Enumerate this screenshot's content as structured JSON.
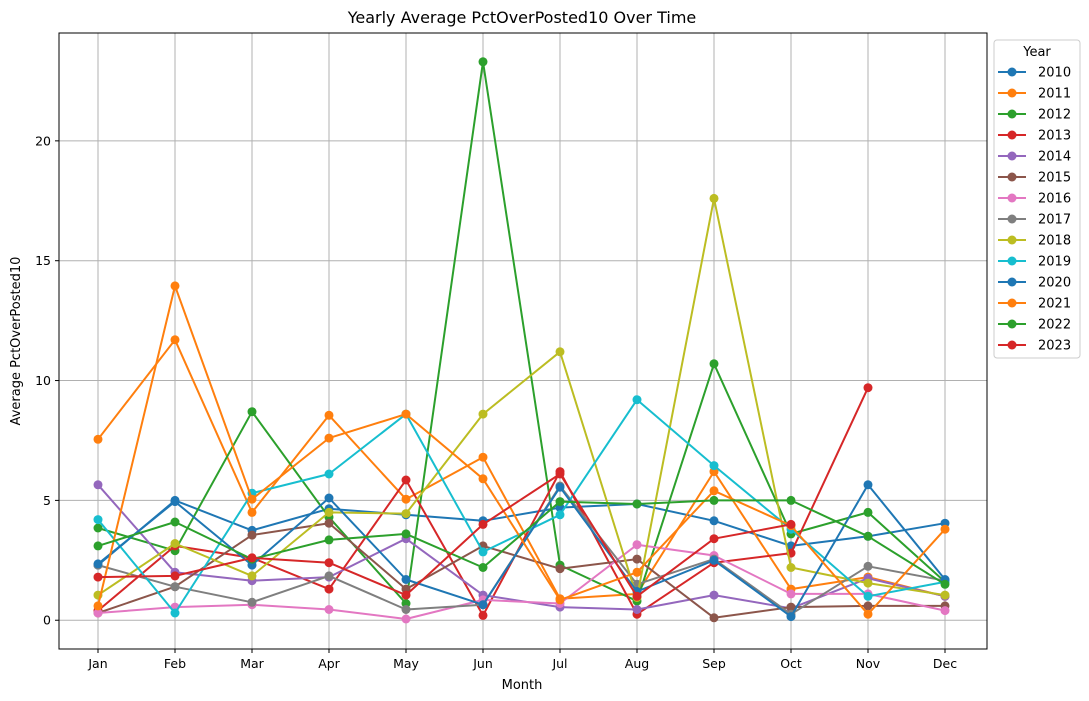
{
  "chart_data": {
    "type": "line",
    "title": "Yearly Average PctOverPosted10 Over Time",
    "xlabel": "Month",
    "ylabel": "Average PctOverPosted10",
    "categories": [
      "Jan",
      "Feb",
      "Mar",
      "Apr",
      "May",
      "Jun",
      "Jul",
      "Aug",
      "Sep",
      "Oct",
      "Nov",
      "Dec"
    ],
    "ylim": [
      -1.2,
      24.5
    ],
    "yticks": [
      0,
      5,
      10,
      15,
      20
    ],
    "grid": true,
    "legend": {
      "title": "Year",
      "placement": "upper-right-outside"
    },
    "series": [
      {
        "name": "2010",
        "color": "#1f77b4",
        "values": [
          2.3,
          5.0,
          3.75,
          4.65,
          4.4,
          4.15,
          4.7,
          4.85,
          4.15,
          3.1,
          3.5,
          4.05
        ]
      },
      {
        "name": "2011",
        "color": "#ff7f0e",
        "values": [
          7.55,
          11.7,
          4.5,
          8.55,
          5.05,
          6.8,
          0.9,
          1.1,
          6.2,
          1.3,
          1.8,
          1.0
        ]
      },
      {
        "name": "2012",
        "color": "#2ca02c",
        "values": [
          3.85,
          2.9,
          8.7,
          4.3,
          0.7,
          23.3,
          2.3,
          0.8,
          10.7,
          3.6,
          4.5,
          1.6
        ]
      },
      {
        "name": "2013",
        "color": "#d62728",
        "values": [
          0.4,
          3.1,
          2.6,
          1.3,
          5.85,
          0.2,
          6.2,
          0.25,
          2.4,
          2.8,
          9.7,
          null
        ]
      },
      {
        "name": "2014",
        "color": "#9467bd",
        "values": [
          5.65,
          2.0,
          1.65,
          1.8,
          3.4,
          1.05,
          0.55,
          0.45,
          1.05,
          0.5,
          1.75,
          1.0
        ]
      },
      {
        "name": "2015",
        "color": "#8c564b",
        "values": [
          0.3,
          1.4,
          3.55,
          4.05,
          1.3,
          3.1,
          2.15,
          2.55,
          0.1,
          0.55,
          0.6,
          0.6
        ]
      },
      {
        "name": "2016",
        "color": "#e377c2",
        "values": [
          0.3,
          0.55,
          0.65,
          0.45,
          0.05,
          0.85,
          0.7,
          3.15,
          2.7,
          1.1,
          1.1,
          0.4
        ]
      },
      {
        "name": "2017",
        "color": "#7f7f7f",
        "values": [
          2.3,
          1.4,
          0.75,
          1.85,
          0.45,
          0.65,
          5.6,
          1.5,
          2.55,
          0.25,
          2.25,
          1.65
        ]
      },
      {
        "name": "2018",
        "color": "#bcbd22",
        "values": [
          1.05,
          3.2,
          1.85,
          4.5,
          4.45,
          8.6,
          11.2,
          0.95,
          17.6,
          2.2,
          1.55,
          1.05
        ]
      },
      {
        "name": "2019",
        "color": "#17becf",
        "values": [
          4.2,
          0.3,
          5.3,
          6.1,
          8.6,
          2.85,
          4.4,
          9.2,
          6.45,
          3.8,
          1.0,
          1.6
        ]
      },
      {
        "name": "2020",
        "color": "#1f77b4",
        "values": [
          2.35,
          4.95,
          2.3,
          5.1,
          1.7,
          0.65,
          5.55,
          1.2,
          2.5,
          0.15,
          5.65,
          1.7
        ]
      },
      {
        "name": "2021",
        "color": "#ff7f0e",
        "values": [
          0.6,
          13.95,
          5.05,
          7.6,
          8.6,
          5.9,
          0.85,
          2.0,
          5.4,
          3.95,
          0.25,
          3.8
        ]
      },
      {
        "name": "2022",
        "color": "#2ca02c",
        "values": [
          3.1,
          4.1,
          2.55,
          3.35,
          3.6,
          2.2,
          4.95,
          4.85,
          5.0,
          5.0,
          3.5,
          1.5
        ]
      },
      {
        "name": "2023",
        "color": "#d62728",
        "values": [
          1.8,
          1.85,
          2.6,
          2.4,
          1.05,
          4.0,
          6.1,
          1.0,
          3.4,
          4.0,
          null,
          null
        ]
      }
    ]
  }
}
